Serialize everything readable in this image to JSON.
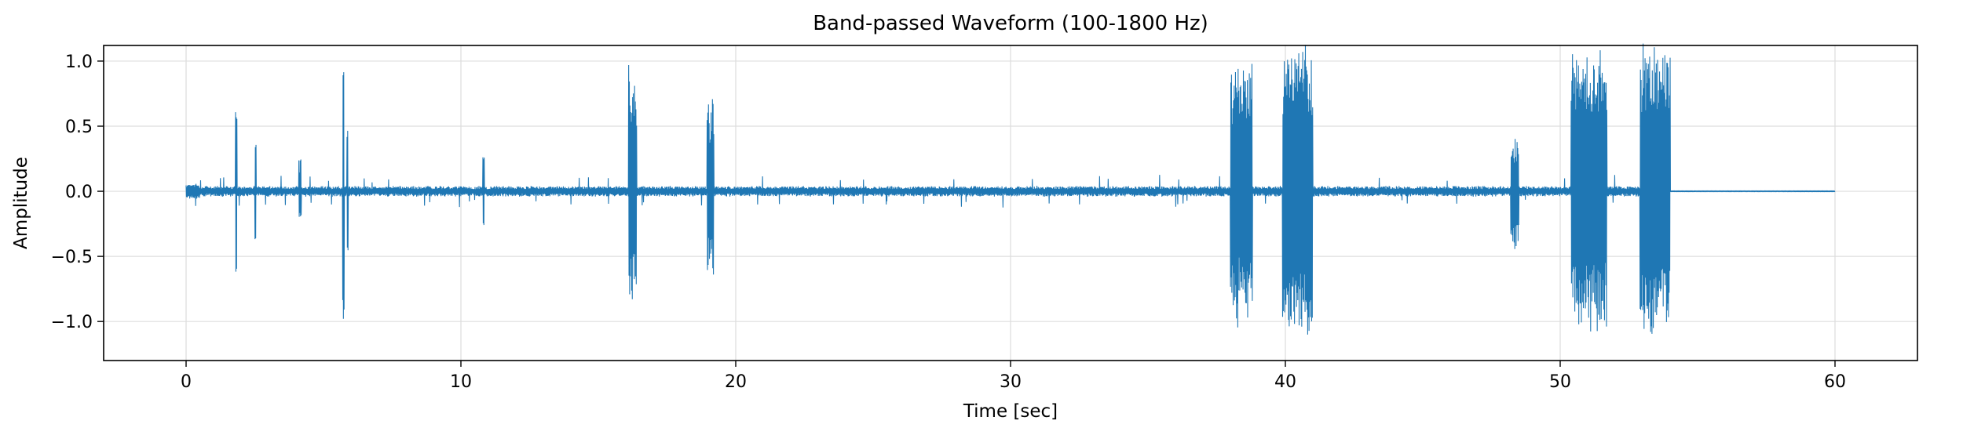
{
  "chart_data": {
    "type": "line",
    "title": "Band-passed Waveform (100-1800 Hz)",
    "xlabel": "Time [sec]",
    "ylabel": "Amplitude",
    "xlim": [
      -3,
      63
    ],
    "ylim": [
      -1.3,
      1.12
    ],
    "xticks": [
      0,
      10,
      20,
      30,
      40,
      50,
      60
    ],
    "xtick_labels": [
      "0",
      "10",
      "20",
      "30",
      "40",
      "50",
      "60"
    ],
    "yticks": [
      -1.0,
      -0.5,
      0.0,
      0.5,
      1.0
    ],
    "ytick_labels": [
      "−1.0",
      "−0.5",
      "0.0",
      "0.5",
      "1.0"
    ],
    "grid": true,
    "legend": "none",
    "series": [
      {
        "color": "#1f77b4",
        "baseline_noise": 0.03,
        "signal_end": 54.0,
        "duration": 60.0,
        "events": [
          {
            "t": 0.0,
            "dur": 0.5,
            "amp": 0.06
          },
          {
            "t": 1.8,
            "dur": 0.05,
            "amp": 0.62
          },
          {
            "t": 2.5,
            "dur": 0.05,
            "amp": 0.37
          },
          {
            "t": 4.1,
            "dur": 0.1,
            "amp": 0.28
          },
          {
            "t": 5.7,
            "dur": 0.05,
            "amp": 0.98
          },
          {
            "t": 5.85,
            "dur": 0.05,
            "amp": 0.48
          },
          {
            "t": 10.8,
            "dur": 0.05,
            "amp": 0.28
          },
          {
            "t": 16.1,
            "dur": 0.3,
            "amp": 0.98
          },
          {
            "t": 18.95,
            "dur": 0.25,
            "amp": 0.72
          },
          {
            "t": 38.0,
            "dur": 0.8,
            "amp": 1.05
          },
          {
            "t": 39.9,
            "dur": 1.1,
            "amp": 1.18
          },
          {
            "t": 48.2,
            "dur": 0.3,
            "amp": 0.45
          },
          {
            "t": 50.4,
            "dur": 1.3,
            "amp": 1.12
          },
          {
            "t": 52.9,
            "dur": 1.1,
            "amp": 1.15
          }
        ]
      }
    ]
  }
}
